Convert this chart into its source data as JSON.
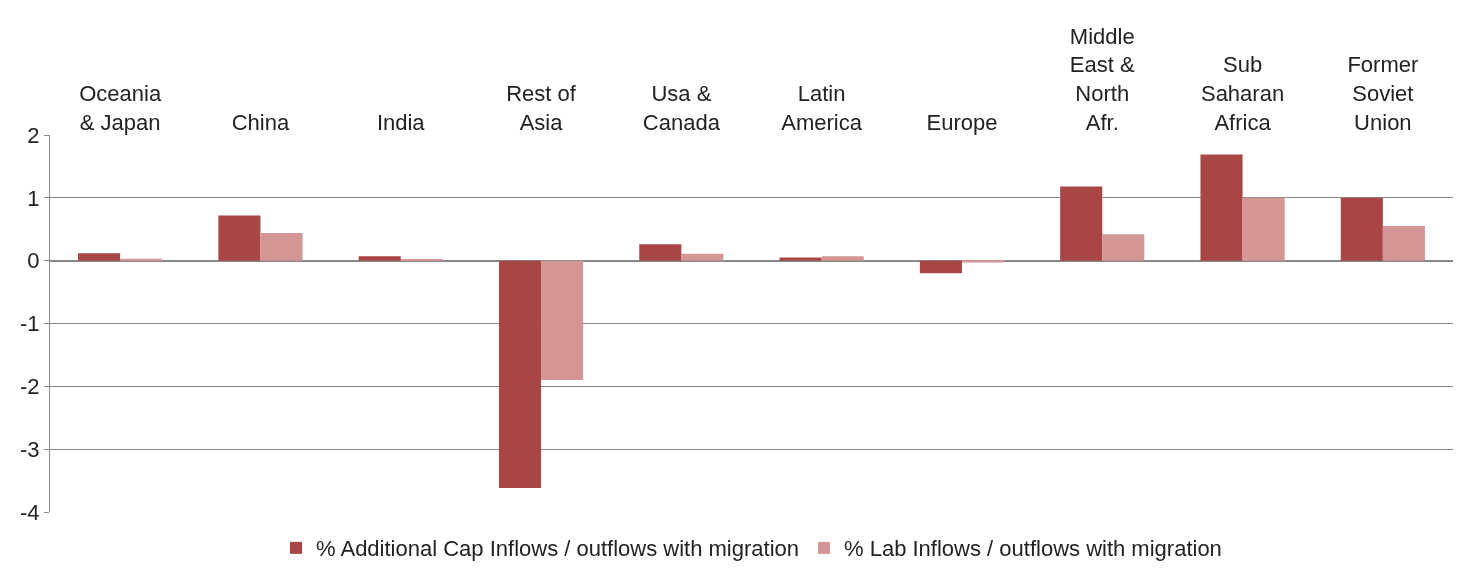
{
  "chart_data": {
    "type": "bar",
    "categories": [
      "Oceania & Japan",
      "China",
      "India",
      "Rest of Asia",
      "Usa & Canada",
      "Latin America",
      "Europe",
      "Middle East & North Afr.",
      "Sub Saharan Africa",
      "Former Soviet Union"
    ],
    "series": [
      {
        "name": "% Additional Cap Inflows / outflows with migration",
        "color": "#a84646",
        "values": [
          0.12,
          0.72,
          0.07,
          -3.62,
          0.26,
          0.05,
          -0.2,
          1.18,
          1.69,
          1.0
        ]
      },
      {
        "name": "% Lab Inflows / outflows with migration",
        "color": "#d49595",
        "values": [
          0.03,
          0.44,
          0.02,
          -1.9,
          0.11,
          0.07,
          -0.03,
          0.42,
          1.0,
          0.55
        ]
      }
    ],
    "ylim": [
      -4,
      2
    ],
    "yticks": [
      -4,
      -3,
      -2,
      -1,
      0,
      1,
      2
    ],
    "grid": "y",
    "legend": "bottom"
  }
}
